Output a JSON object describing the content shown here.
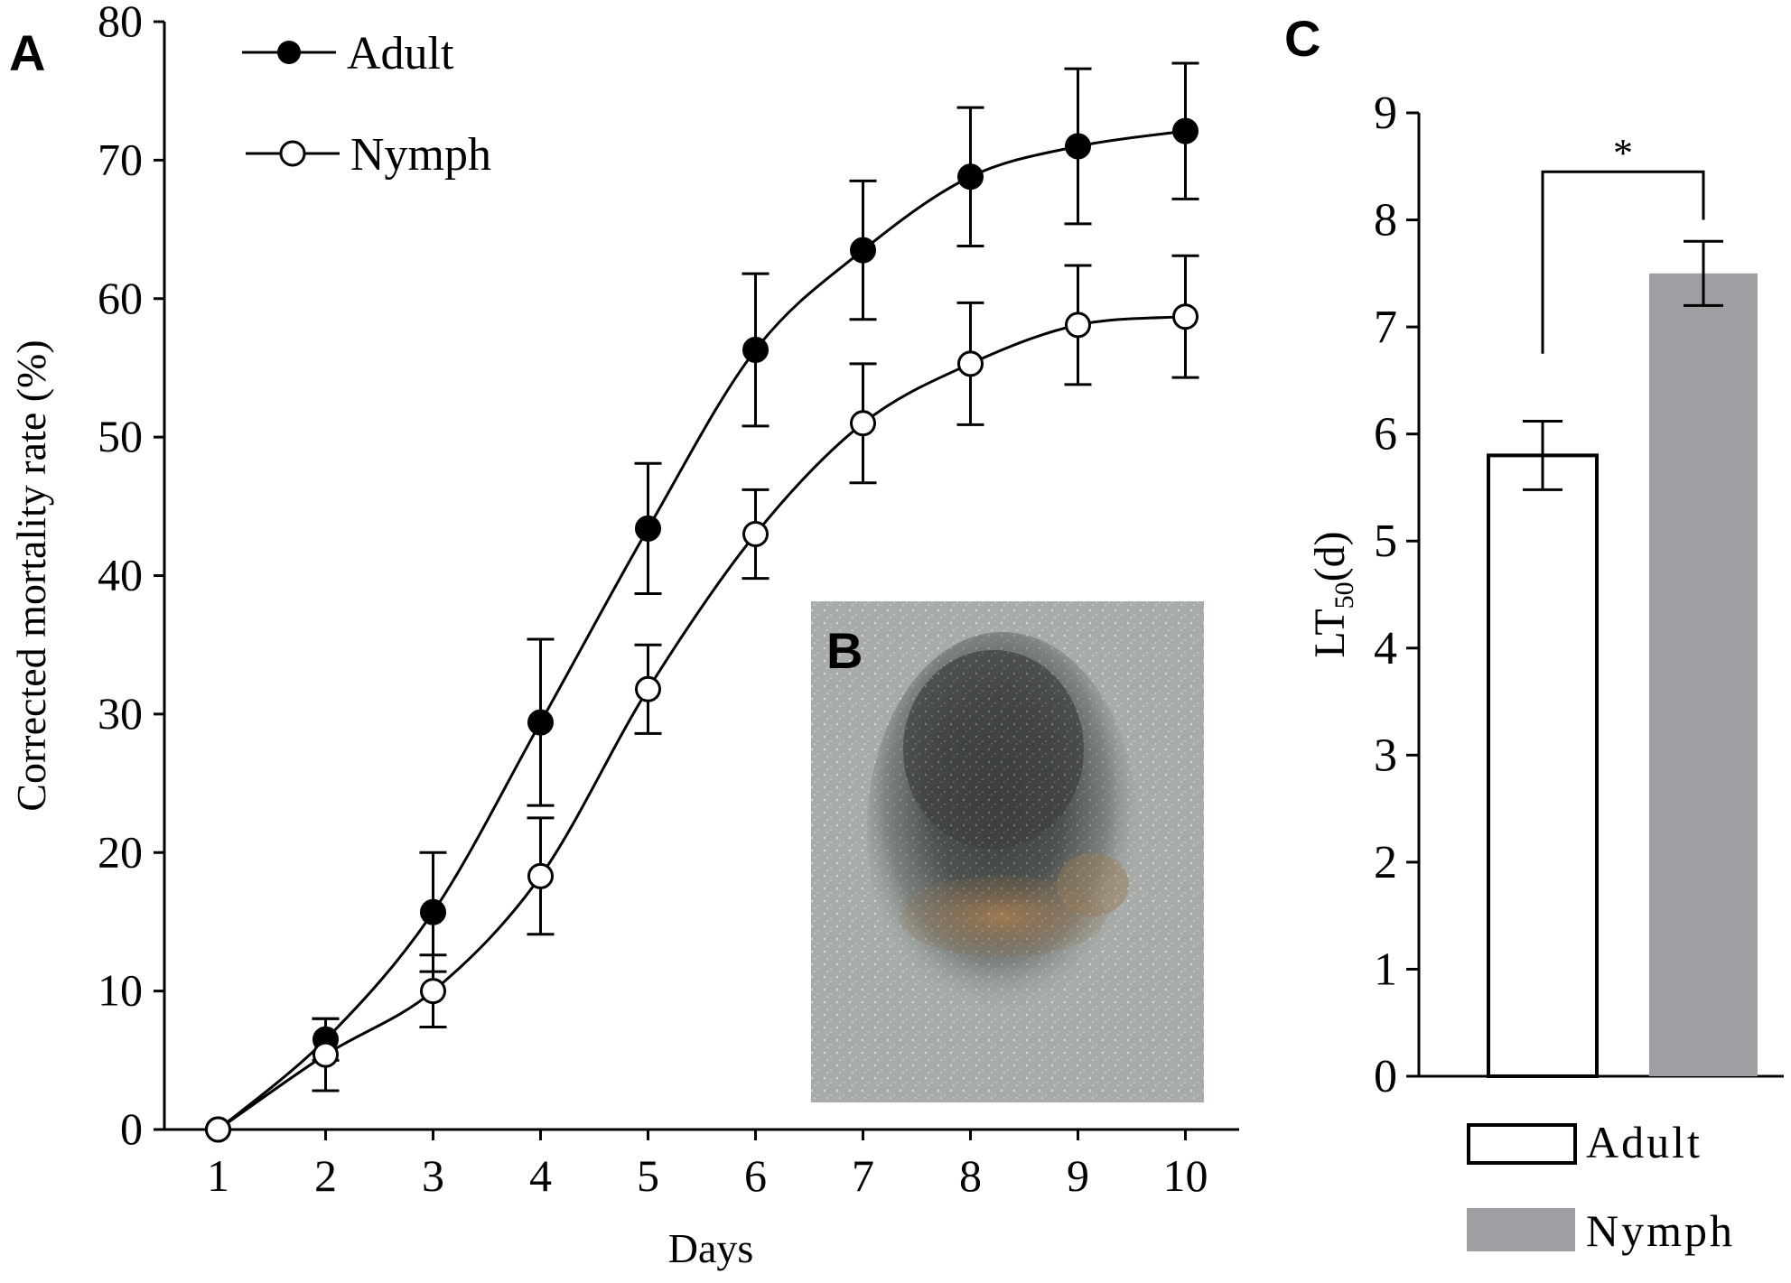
{
  "panels": {
    "a_label": "A",
    "b_label": "B",
    "c_label": "C"
  },
  "colors": {
    "ink": "#000000",
    "bar_adult": "#ffffff",
    "bar_nymph": "#9e9ea3"
  },
  "chart_data": [
    {
      "panel": "A",
      "type": "line",
      "xlabel": "Days",
      "ylabel": "Corrected  mortality rate (%)",
      "x": [
        1,
        2,
        3,
        4,
        5,
        6,
        7,
        8,
        9,
        10
      ],
      "xticks": [
        1,
        2,
        3,
        4,
        5,
        6,
        7,
        8,
        9,
        10
      ],
      "xlim": [
        0.5,
        10.5
      ],
      "ylim": [
        0,
        80
      ],
      "yticks": [
        0,
        10,
        20,
        30,
        40,
        50,
        60,
        70,
        80
      ],
      "legend_position": "top-left",
      "grid": false,
      "series": [
        {
          "name": "Adult",
          "marker": "filled-circle",
          "values": [
            0,
            6.5,
            15.7,
            29.4,
            43.4,
            56.3,
            63.5,
            68.8,
            71.0,
            72.1
          ],
          "errors": [
            0,
            1.5,
            4.3,
            6.0,
            4.7,
            5.5,
            5.0,
            5.0,
            5.6,
            4.9
          ]
        },
        {
          "name": "Nymph",
          "marker": "open-circle",
          "values": [
            0,
            5.4,
            10.0,
            18.3,
            31.8,
            43.0,
            51.0,
            55.3,
            58.1,
            58.7
          ],
          "errors": [
            0,
            2.6,
            2.6,
            4.2,
            3.2,
            3.2,
            4.3,
            4.4,
            4.3,
            4.4
          ]
        }
      ]
    },
    {
      "panel": "C",
      "type": "bar",
      "ylabel_main": "LT",
      "ylabel_sub": "50",
      "ylabel_unit": "(d)",
      "categories": [
        "Adult",
        "Nymph"
      ],
      "values": [
        5.8,
        7.5
      ],
      "errors": [
        0.32,
        0.3
      ],
      "ylim": [
        0,
        9
      ],
      "yticks": [
        0,
        1,
        2,
        3,
        4,
        5,
        6,
        7,
        8,
        9
      ],
      "significance": "*",
      "legend_position": "bottom",
      "grid": false
    }
  ]
}
